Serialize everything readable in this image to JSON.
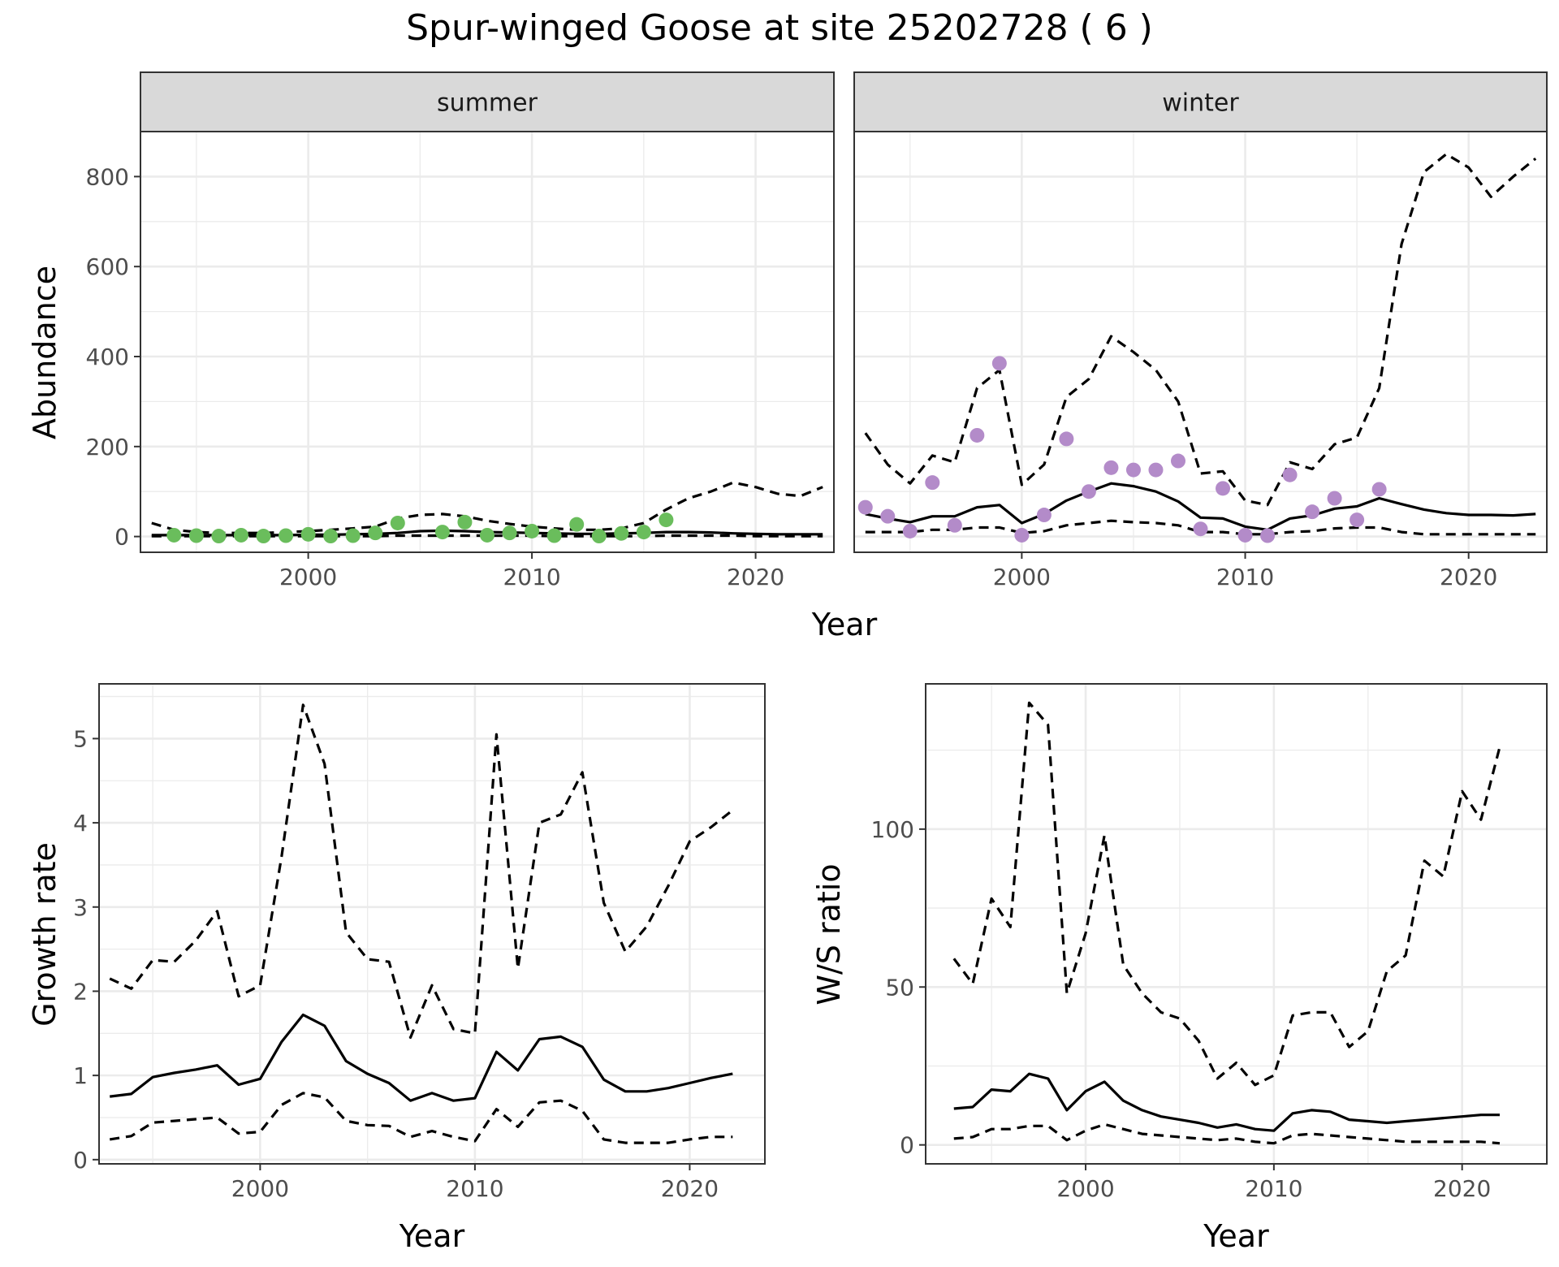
{
  "title": "Spur-winged Goose at site 25202728 ( 6 )",
  "colors": {
    "summer_points": "#6ABD5C",
    "winter_points": "#B38BC9",
    "line": "#000000",
    "strip_bg": "#D9D9D9",
    "grid": "#EBEBEB"
  },
  "chart_data": [
    {
      "type": "line",
      "panel": "summer",
      "strip": "summer",
      "xlabel": "",
      "ylabel": "Abundance",
      "xlim": [
        1992.5,
        2023.5
      ],
      "ylim": [
        -35,
        900
      ],
      "xticks": [
        2000,
        2010,
        2020
      ],
      "yticks": [
        0,
        200,
        400,
        600,
        800
      ],
      "x": [
        1993,
        1994,
        1995,
        1996,
        1997,
        1998,
        1999,
        2000,
        2001,
        2002,
        2003,
        2004,
        2005,
        2006,
        2007,
        2008,
        2009,
        2010,
        2011,
        2012,
        2013,
        2014,
        2015,
        2016,
        2017,
        2018,
        2019,
        2020,
        2021,
        2022,
        2023
      ],
      "series": [
        {
          "role": "mean",
          "dash": false,
          "values": [
            3,
            3,
            3,
            3,
            3,
            3,
            3,
            4,
            4,
            5,
            6,
            8,
            12,
            13,
            12,
            10,
            9,
            8,
            7,
            6,
            6,
            7,
            8,
            10,
            10,
            9,
            7,
            6,
            5,
            5,
            5
          ]
        },
        {
          "role": "upper",
          "dash": true,
          "values": [
            30,
            15,
            10,
            8,
            8,
            8,
            10,
            12,
            15,
            18,
            22,
            40,
            48,
            50,
            45,
            35,
            28,
            22,
            18,
            15,
            15,
            18,
            30,
            60,
            85,
            100,
            120,
            110,
            95,
            90,
            110
          ]
        },
        {
          "role": "lower",
          "dash": true,
          "values": [
            1,
            1,
            1,
            1,
            1,
            1,
            1,
            1,
            1,
            1,
            1,
            2,
            2,
            2,
            2,
            2,
            2,
            2,
            1,
            1,
            1,
            1,
            1,
            2,
            2,
            2,
            2,
            1,
            1,
            1,
            1
          ]
        }
      ],
      "points": {
        "x": [
          1994,
          1995,
          1996,
          1997,
          1998,
          1999,
          2000,
          2001,
          2002,
          2003,
          2004,
          2006,
          2007,
          2008,
          2009,
          2010,
          2011,
          2012,
          2013,
          2014,
          2015,
          2016
        ],
        "y": [
          3,
          2,
          1,
          3,
          1,
          2,
          5,
          1,
          2,
          8,
          30,
          10,
          32,
          3,
          8,
          12,
          2,
          27,
          1,
          7,
          10,
          37
        ]
      }
    },
    {
      "type": "line",
      "panel": "winter",
      "strip": "winter",
      "xlabel": "",
      "ylabel": "",
      "xlim": [
        1992.5,
        2023.5
      ],
      "ylim": [
        -35,
        900
      ],
      "xticks": [
        2000,
        2010,
        2020
      ],
      "yticks": [
        0,
        200,
        400,
        600,
        800
      ],
      "x": [
        1993,
        1994,
        1995,
        1996,
        1997,
        1998,
        1999,
        2000,
        2001,
        2002,
        2003,
        2004,
        2005,
        2006,
        2007,
        2008,
        2009,
        2010,
        2011,
        2012,
        2013,
        2014,
        2015,
        2016,
        2017,
        2018,
        2019,
        2020,
        2021,
        2022,
        2023
      ],
      "series": [
        {
          "role": "mean",
          "dash": false,
          "values": [
            50,
            40,
            32,
            45,
            45,
            65,
            70,
            30,
            50,
            80,
            100,
            118,
            112,
            100,
            78,
            42,
            40,
            22,
            15,
            40,
            47,
            62,
            67,
            85,
            72,
            60,
            52,
            48,
            48,
            47,
            50
          ]
        },
        {
          "role": "upper",
          "dash": true,
          "values": [
            230,
            160,
            118,
            180,
            165,
            330,
            370,
            115,
            160,
            310,
            350,
            445,
            410,
            370,
            300,
            140,
            145,
            80,
            70,
            165,
            150,
            205,
            220,
            330,
            650,
            810,
            850,
            820,
            755,
            800,
            840
          ]
        },
        {
          "role": "lower",
          "dash": true,
          "values": [
            10,
            10,
            10,
            15,
            15,
            20,
            20,
            8,
            12,
            25,
            30,
            35,
            32,
            30,
            25,
            10,
            10,
            5,
            5,
            10,
            12,
            18,
            20,
            20,
            10,
            5,
            5,
            5,
            5,
            5,
            5
          ]
        }
      ],
      "points": {
        "x": [
          1993,
          1994,
          1995,
          1996,
          1997,
          1998,
          1999,
          2000,
          2001,
          2002,
          2003,
          2004,
          2005,
          2006,
          2007,
          2008,
          2009,
          2010,
          2011,
          2012,
          2013,
          2014,
          2015,
          2016
        ],
        "y": [
          65,
          45,
          12,
          120,
          25,
          225,
          385,
          3,
          48,
          217,
          100,
          153,
          148,
          148,
          168,
          17,
          107,
          3,
          2,
          137,
          55,
          85,
          37,
          105
        ]
      }
    },
    {
      "type": "line",
      "panel": "growth",
      "xlabel": "Year",
      "ylabel": "Growth rate",
      "xlim": [
        1992.5,
        2023.5
      ],
      "ylim": [
        -0.05,
        5.65
      ],
      "xticks": [
        2000,
        2010,
        2020
      ],
      "yticks": [
        0,
        1,
        2,
        3,
        4,
        5
      ],
      "x": [
        1993,
        1994,
        1995,
        1996,
        1997,
        1998,
        1999,
        2000,
        2001,
        2002,
        2003,
        2004,
        2005,
        2006,
        2007,
        2008,
        2009,
        2010,
        2011,
        2012,
        2013,
        2014,
        2015,
        2016,
        2017,
        2018,
        2019,
        2020,
        2021,
        2022
      ],
      "series": [
        {
          "role": "mean",
          "dash": false,
          "values": [
            0.75,
            0.78,
            0.98,
            1.03,
            1.07,
            1.12,
            0.89,
            0.96,
            1.4,
            1.72,
            1.59,
            1.17,
            1.02,
            0.91,
            0.7,
            0.79,
            0.7,
            0.73,
            1.28,
            1.06,
            1.43,
            1.46,
            1.34,
            0.95,
            0.81,
            0.81,
            0.85,
            0.91,
            0.97,
            1.02
          ]
        },
        {
          "role": "upper",
          "dash": true,
          "values": [
            2.15,
            2.03,
            2.37,
            2.35,
            2.6,
            2.95,
            1.94,
            2.07,
            3.6,
            5.4,
            4.7,
            2.7,
            2.38,
            2.35,
            1.45,
            2.07,
            1.55,
            1.5,
            5.05,
            2.27,
            4.0,
            4.1,
            4.6,
            3.05,
            2.47,
            2.77,
            3.25,
            3.78,
            3.95,
            4.15
          ]
        },
        {
          "role": "lower",
          "dash": true,
          "values": [
            0.24,
            0.28,
            0.44,
            0.46,
            0.48,
            0.5,
            0.31,
            0.33,
            0.65,
            0.79,
            0.74,
            0.46,
            0.41,
            0.4,
            0.27,
            0.34,
            0.27,
            0.22,
            0.6,
            0.39,
            0.68,
            0.7,
            0.58,
            0.24,
            0.2,
            0.2,
            0.2,
            0.24,
            0.27,
            0.27
          ]
        }
      ]
    },
    {
      "type": "line",
      "panel": "ws_ratio",
      "xlabel": "Year",
      "ylabel": "W/S ratio",
      "xlim": [
        1991.5,
        2024.5
      ],
      "ylim": [
        -6,
        146
      ],
      "xticks": [
        2000,
        2010,
        2020
      ],
      "yticks": [
        0,
        50,
        100
      ],
      "x": [
        1993,
        1994,
        1995,
        1996,
        1997,
        1998,
        1999,
        2000,
        2001,
        2002,
        2003,
        2004,
        2005,
        2006,
        2007,
        2008,
        2009,
        2010,
        2011,
        2012,
        2013,
        2014,
        2015,
        2016,
        2017,
        2018,
        2019,
        2020,
        2021,
        2022
      ],
      "series": [
        {
          "role": "mean",
          "dash": false,
          "values": [
            11.5,
            12,
            17.5,
            17,
            22.5,
            21,
            11,
            17,
            20,
            14,
            11,
            9,
            8,
            7,
            5.5,
            6.5,
            5,
            4.5,
            10,
            11,
            10.5,
            8,
            7.5,
            7,
            7.5,
            8,
            8.5,
            9,
            9.5,
            9.5
          ]
        },
        {
          "role": "upper",
          "dash": true,
          "values": [
            59,
            51,
            78,
            69,
            140,
            133,
            48,
            67,
            98,
            57,
            48,
            42,
            40,
            33,
            21,
            26,
            19,
            22,
            41,
            42,
            42,
            31,
            36,
            55,
            60,
            90,
            85,
            112,
            103,
            126
          ]
        },
        {
          "role": "lower",
          "dash": true,
          "values": [
            2,
            2.5,
            5,
            5,
            6,
            6,
            1.5,
            4.5,
            6.5,
            5,
            3.5,
            3,
            2.5,
            2,
            1.5,
            2,
            1,
            0.5,
            3,
            3.5,
            3,
            2.5,
            2,
            1.5,
            1,
            1,
            1,
            1,
            1,
            0.5
          ]
        }
      ]
    }
  ]
}
